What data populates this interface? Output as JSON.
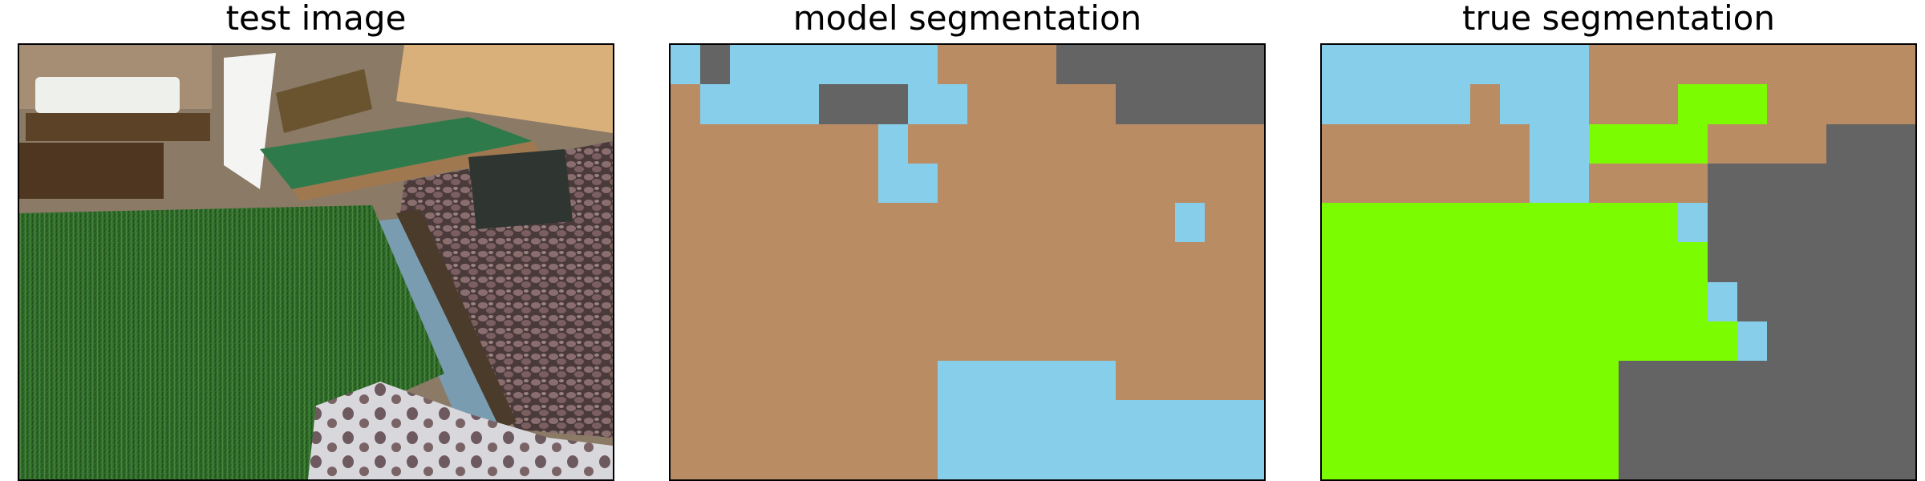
{
  "panels": [
    {
      "title": "test image"
    },
    {
      "title": "model segmentation"
    },
    {
      "title": "true segmentation"
    }
  ],
  "colors": {
    "tan": "#ba8c64",
    "sky": "#87ceeb",
    "gray": "#646464",
    "green": "#7cfc00"
  },
  "segmentation_legend_note": "",
  "model_grid": [
    "SGSSSSSSSTTTTGGGGGGG",
    "TSSSSGGGSSTTTTTGGGGG",
    "TTTTTTTSTTTTTTTTTTTT",
    "TTTTTTTSSTTTTTTTTTTT",
    "TTTTTTTTTTTTTTTTTSTT",
    "TTTTTTTTTTTTTTTTTTTT",
    "TTTTTTTTTTTTTTTTTTTT",
    "TTTTTTTTTTTTTTTTTTTT",
    "TTTTTTTTTSSSSSSTTTTT",
    "TTTTTTTTTSSSSSSSSSSS",
    "TTTTTTTTTSSSSSSSSSSS"
  ],
  "true_grid": [
    "SSSSSSSSSTTTTTTTTTTT",
    "SSSSSTSSSTTTLLLTTTTT",
    "TTTTTTTSSLLLLTTTTGGG",
    "TTTTTTTSSTTTTGGGGGGG",
    "LLLLLLLLLLLLSGGGGGGG",
    "LLLLLLLLLLLLLGGGGGGG",
    "LLLLLLLLLLLLLSGGGGGG",
    "LLLLLLLLLLLLLLSGGGGG",
    "LLLLLLLLLLGGGGGGGGGG",
    "LLLLLLLLLLGGGGGGGGGG",
    "LLLLLLLLLLGGGGGGGGGG"
  ]
}
